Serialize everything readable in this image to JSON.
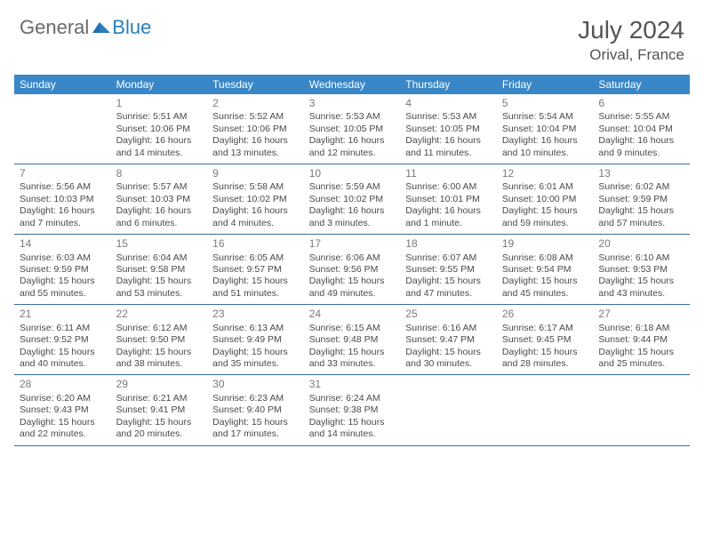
{
  "brand": {
    "part1": "General",
    "part2": "Blue"
  },
  "title": "July 2024",
  "location": "Orival, France",
  "colors": {
    "header_bg": "#3a87c7",
    "header_text": "#ffffff",
    "border": "#3a6ea5",
    "daynum": "#7a7a7a",
    "body_text": "#4a4a4a",
    "brand_gray": "#6a6a6a",
    "brand_blue": "#2a7fba",
    "title_color": "#545454"
  },
  "dow": [
    "Sunday",
    "Monday",
    "Tuesday",
    "Wednesday",
    "Thursday",
    "Friday",
    "Saturday"
  ],
  "weeks": [
    [
      null,
      {
        "n": "1",
        "sr": "5:51 AM",
        "ss": "10:06 PM",
        "dl": "16 hours and 14 minutes."
      },
      {
        "n": "2",
        "sr": "5:52 AM",
        "ss": "10:06 PM",
        "dl": "16 hours and 13 minutes."
      },
      {
        "n": "3",
        "sr": "5:53 AM",
        "ss": "10:05 PM",
        "dl": "16 hours and 12 minutes."
      },
      {
        "n": "4",
        "sr": "5:53 AM",
        "ss": "10:05 PM",
        "dl": "16 hours and 11 minutes."
      },
      {
        "n": "5",
        "sr": "5:54 AM",
        "ss": "10:04 PM",
        "dl": "16 hours and 10 minutes."
      },
      {
        "n": "6",
        "sr": "5:55 AM",
        "ss": "10:04 PM",
        "dl": "16 hours and 9 minutes."
      }
    ],
    [
      {
        "n": "7",
        "sr": "5:56 AM",
        "ss": "10:03 PM",
        "dl": "16 hours and 7 minutes."
      },
      {
        "n": "8",
        "sr": "5:57 AM",
        "ss": "10:03 PM",
        "dl": "16 hours and 6 minutes."
      },
      {
        "n": "9",
        "sr": "5:58 AM",
        "ss": "10:02 PM",
        "dl": "16 hours and 4 minutes."
      },
      {
        "n": "10",
        "sr": "5:59 AM",
        "ss": "10:02 PM",
        "dl": "16 hours and 3 minutes."
      },
      {
        "n": "11",
        "sr": "6:00 AM",
        "ss": "10:01 PM",
        "dl": "16 hours and 1 minute."
      },
      {
        "n": "12",
        "sr": "6:01 AM",
        "ss": "10:00 PM",
        "dl": "15 hours and 59 minutes."
      },
      {
        "n": "13",
        "sr": "6:02 AM",
        "ss": "9:59 PM",
        "dl": "15 hours and 57 minutes."
      }
    ],
    [
      {
        "n": "14",
        "sr": "6:03 AM",
        "ss": "9:59 PM",
        "dl": "15 hours and 55 minutes."
      },
      {
        "n": "15",
        "sr": "6:04 AM",
        "ss": "9:58 PM",
        "dl": "15 hours and 53 minutes."
      },
      {
        "n": "16",
        "sr": "6:05 AM",
        "ss": "9:57 PM",
        "dl": "15 hours and 51 minutes."
      },
      {
        "n": "17",
        "sr": "6:06 AM",
        "ss": "9:56 PM",
        "dl": "15 hours and 49 minutes."
      },
      {
        "n": "18",
        "sr": "6:07 AM",
        "ss": "9:55 PM",
        "dl": "15 hours and 47 minutes."
      },
      {
        "n": "19",
        "sr": "6:08 AM",
        "ss": "9:54 PM",
        "dl": "15 hours and 45 minutes."
      },
      {
        "n": "20",
        "sr": "6:10 AM",
        "ss": "9:53 PM",
        "dl": "15 hours and 43 minutes."
      }
    ],
    [
      {
        "n": "21",
        "sr": "6:11 AM",
        "ss": "9:52 PM",
        "dl": "15 hours and 40 minutes."
      },
      {
        "n": "22",
        "sr": "6:12 AM",
        "ss": "9:50 PM",
        "dl": "15 hours and 38 minutes."
      },
      {
        "n": "23",
        "sr": "6:13 AM",
        "ss": "9:49 PM",
        "dl": "15 hours and 35 minutes."
      },
      {
        "n": "24",
        "sr": "6:15 AM",
        "ss": "9:48 PM",
        "dl": "15 hours and 33 minutes."
      },
      {
        "n": "25",
        "sr": "6:16 AM",
        "ss": "9:47 PM",
        "dl": "15 hours and 30 minutes."
      },
      {
        "n": "26",
        "sr": "6:17 AM",
        "ss": "9:45 PM",
        "dl": "15 hours and 28 minutes."
      },
      {
        "n": "27",
        "sr": "6:18 AM",
        "ss": "9:44 PM",
        "dl": "15 hours and 25 minutes."
      }
    ],
    [
      {
        "n": "28",
        "sr": "6:20 AM",
        "ss": "9:43 PM",
        "dl": "15 hours and 22 minutes."
      },
      {
        "n": "29",
        "sr": "6:21 AM",
        "ss": "9:41 PM",
        "dl": "15 hours and 20 minutes."
      },
      {
        "n": "30",
        "sr": "6:23 AM",
        "ss": "9:40 PM",
        "dl": "15 hours and 17 minutes."
      },
      {
        "n": "31",
        "sr": "6:24 AM",
        "ss": "9:38 PM",
        "dl": "15 hours and 14 minutes."
      },
      null,
      null,
      null
    ]
  ],
  "labels": {
    "sunrise": "Sunrise:",
    "sunset": "Sunset:",
    "daylight": "Daylight:"
  }
}
